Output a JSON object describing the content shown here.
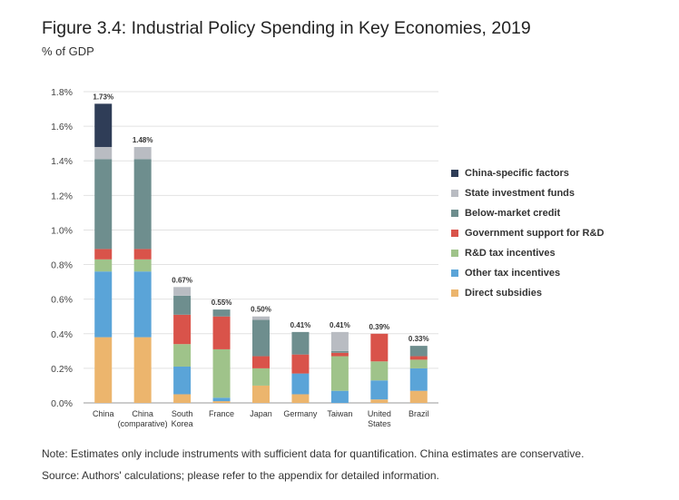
{
  "figure": {
    "title": "Figure 3.4: Industrial Policy Spending in Key Economies, 2019",
    "subtitle": "% of GDP",
    "note": "Note: Estimates only include instruments with sufficient data for quantification. China estimates are conservative.",
    "source": "Source: Authors' calculations; please refer to the appendix for detailed information."
  },
  "chart_data": {
    "type": "bar",
    "stacked": true,
    "title": "Figure 3.4: Industrial Policy Spending in Key Economies, 2019",
    "ylabel": "% of GDP",
    "xlabel": "",
    "ylim": [
      0,
      1.8
    ],
    "yticks": [
      0,
      0.2,
      0.4,
      0.6,
      0.8,
      1.0,
      1.2,
      1.4,
      1.6,
      1.8
    ],
    "ytick_labels": [
      "0.0%",
      "0.2%",
      "0.4%",
      "0.6%",
      "0.8%",
      "1.0%",
      "1.2%",
      "1.4%",
      "1.6%",
      "1.8%"
    ],
    "grid": true,
    "legend_position": "right",
    "categories": [
      [
        "China"
      ],
      [
        "China",
        "(comparative)"
      ],
      [
        "South",
        "Korea"
      ],
      [
        "France"
      ],
      [
        "Japan"
      ],
      [
        "Germany"
      ],
      [
        "Taiwan"
      ],
      [
        "United",
        "States"
      ],
      [
        "Brazil"
      ]
    ],
    "totals": [
      "1.73%",
      "1.48%",
      "0.67%",
      "0.55%",
      "0.50%",
      "0.41%",
      "0.41%",
      "0.39%",
      "0.33%"
    ],
    "series": [
      {
        "name": "Direct subsidies",
        "color": "#ecb56d",
        "values": [
          0.38,
          0.38,
          0.05,
          0.01,
          0.1,
          0.05,
          0.0,
          0.02,
          0.07
        ]
      },
      {
        "name": "Other tax incentives",
        "color": "#5aa4d8",
        "values": [
          0.38,
          0.38,
          0.16,
          0.02,
          0.0,
          0.12,
          0.07,
          0.11,
          0.13
        ]
      },
      {
        "name": "R&D tax incentives",
        "color": "#9fc38a",
        "values": [
          0.07,
          0.07,
          0.13,
          0.28,
          0.1,
          0.0,
          0.2,
          0.11,
          0.05
        ]
      },
      {
        "name": "Government support for R&D",
        "color": "#d9534a",
        "values": [
          0.06,
          0.06,
          0.17,
          0.19,
          0.07,
          0.11,
          0.02,
          0.16,
          0.02
        ]
      },
      {
        "name": "Below-market credit",
        "color": "#6e8e8e",
        "values": [
          0.52,
          0.52,
          0.11,
          0.04,
          0.21,
          0.13,
          0.01,
          0.0,
          0.06
        ]
      },
      {
        "name": "State investment funds",
        "color": "#b9bcc2",
        "values": [
          0.07,
          0.07,
          0.05,
          0.0,
          0.02,
          0.0,
          0.11,
          0.0,
          0.0
        ]
      },
      {
        "name": "China-specific factors",
        "color": "#2f3d57",
        "values": [
          0.25,
          0.0,
          0.0,
          0.0,
          0.0,
          0.0,
          0.0,
          0.0,
          0.0
        ]
      }
    ]
  },
  "legend": {
    "items": [
      {
        "label": "China-specific factors",
        "color": "#2f3d57"
      },
      {
        "label": "State investment funds",
        "color": "#b9bcc2"
      },
      {
        "label": "Below-market credit",
        "color": "#6e8e8e"
      },
      {
        "label": "Government support for R&D",
        "color": "#d9534a"
      },
      {
        "label": "R&D tax incentives",
        "color": "#9fc38a"
      },
      {
        "label": "Other tax incentives",
        "color": "#5aa4d8"
      },
      {
        "label": "Direct subsidies",
        "color": "#ecb56d"
      }
    ]
  }
}
